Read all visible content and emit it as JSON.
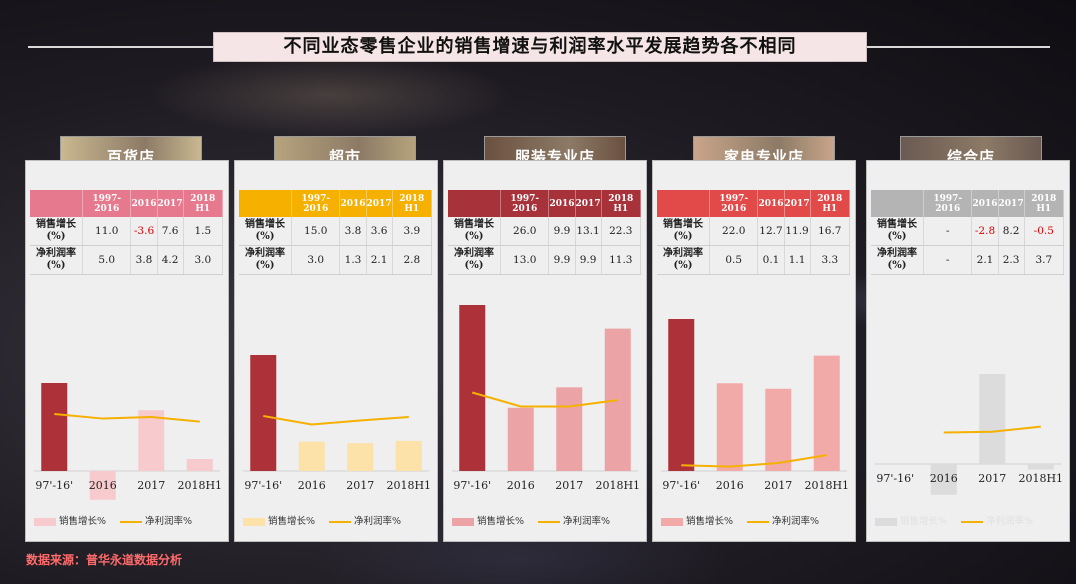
{
  "title": "不同业态零售企业的销售增速与利润率水平发展趋势各不相同",
  "source": "数据来源：普华永道数据分析",
  "table_headers": [
    "1997-2016",
    "2016",
    "2017",
    "2018 H1"
  ],
  "row_labels": {
    "sales": "销售增长(%)",
    "profit": "净利润率(%)"
  },
  "legend": {
    "sales": "销售增长%",
    "profit": "净利润率%"
  },
  "colors": {
    "profit_line": "#f5b000"
  },
  "panels": [
    {
      "title": "百货店",
      "header_color": "#e7798e",
      "title_bg": "#c9b890",
      "bar_colors": [
        "#ad3138",
        "#f7cbcd",
        "#f7cbcd",
        "#f7cbcd"
      ],
      "legend_color": "#f7cbcd"
    },
    {
      "title": "超市",
      "header_color": "#f5b000",
      "title_bg": "#b6a37c",
      "bar_colors": [
        "#ad3138",
        "#fce1a8",
        "#fce1a8",
        "#fce1a8"
      ],
      "legend_color": "#fce1a8"
    },
    {
      "title": "服装专业店",
      "header_color": "#a8323a",
      "title_bg": "#6b5040",
      "bar_colors": [
        "#ad3138",
        "#eca3a6",
        "#eca3a6",
        "#eca3a6"
      ],
      "legend_color": "#eca3a6"
    },
    {
      "title": "家电专业店",
      "header_color": "#e24a4a",
      "title_bg": "#c9a58a",
      "bar_colors": [
        "#ad3138",
        "#f2aaa9",
        "#f2aaa9",
        "#f2aaa9"
      ],
      "legend_color": "#f2aaa9"
    },
    {
      "title": "综合店",
      "header_color": "#b4b4b4",
      "title_bg": "#6a5a52",
      "bar_colors": [
        "#dcdcdc",
        "#dcdcdc",
        "#dcdcdc",
        "#dcdcdc"
      ],
      "legend_color": "#dcdcdc"
    }
  ],
  "chart_data": [
    {
      "type": "bar",
      "title": "百货店",
      "categories": [
        "97'-16'",
        "2016",
        "2017",
        "2018H1"
      ],
      "series": [
        {
          "name": "销售增长%",
          "values": [
            11.0,
            -3.6,
            7.6,
            1.5
          ]
        },
        {
          "name": "净利润率%",
          "values": [
            5.0,
            3.8,
            4.2,
            3.0
          ]
        }
      ],
      "table": {
        "sales": [
          "11.0",
          "-3.6",
          "7.6",
          "1.5"
        ],
        "profit": [
          "5.0",
          "3.8",
          "4.2",
          "3.0"
        ]
      }
    },
    {
      "type": "bar",
      "title": "超市",
      "categories": [
        "97'-16'",
        "2016",
        "2017",
        "2018H1"
      ],
      "series": [
        {
          "name": "销售增长%",
          "values": [
            15.0,
            3.8,
            3.6,
            3.9
          ]
        },
        {
          "name": "净利润率%",
          "values": [
            3.0,
            1.3,
            2.1,
            2.8
          ]
        }
      ],
      "table": {
        "sales": [
          "15.0",
          "3.8",
          "3.6",
          "3.9"
        ],
        "profit": [
          "3.0",
          "1.3",
          "2.1",
          "2.8"
        ]
      }
    },
    {
      "type": "bar",
      "title": "服装专业店",
      "categories": [
        "97'-16'",
        "2016",
        "2017",
        "2018H1"
      ],
      "series": [
        {
          "name": "销售增长%",
          "values": [
            26.0,
            9.9,
            13.1,
            22.3
          ]
        },
        {
          "name": "净利润率%",
          "values": [
            13.0,
            9.9,
            9.9,
            11.3
          ]
        }
      ],
      "table": {
        "sales": [
          "26.0",
          "9.9",
          "13.1",
          "22.3"
        ],
        "profit": [
          "13.0",
          "9.9",
          "9.9",
          "11.3"
        ]
      }
    },
    {
      "type": "bar",
      "title": "家电专业店",
      "categories": [
        "97'-16'",
        "2016",
        "2017",
        "2018H1"
      ],
      "series": [
        {
          "name": "销售增长%",
          "values": [
            22.0,
            12.7,
            11.9,
            16.7
          ]
        },
        {
          "name": "净利润率%",
          "values": [
            0.5,
            0.1,
            1.1,
            3.3
          ]
        }
      ],
      "table": {
        "sales": [
          "22.0",
          "12.7",
          "11.9",
          "16.7"
        ],
        "profit": [
          "0.5",
          "0.1",
          "1.1",
          "3.3"
        ]
      }
    },
    {
      "type": "bar",
      "title": "综合店",
      "categories": [
        "97'-16'",
        "2016",
        "2017",
        "2018H1"
      ],
      "series": [
        {
          "name": "销售增长%",
          "values": [
            null,
            -2.8,
            8.2,
            -0.5
          ]
        },
        {
          "name": "净利润率%",
          "values": [
            null,
            2.1,
            2.3,
            3.7
          ]
        }
      ],
      "table": {
        "sales": [
          "-",
          "-2.8",
          "8.2",
          "-0.5"
        ],
        "profit": [
          "-",
          "2.1",
          "2.3",
          "3.7"
        ]
      }
    }
  ]
}
